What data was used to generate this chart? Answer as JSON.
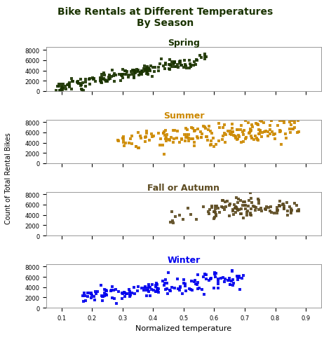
{
  "title": "Bike Rentals at Different Temperatures\nBy Season",
  "title_color": "#1a3300",
  "title_fontsize": 10,
  "xlabel": "Normalized temperature",
  "ylabel": "Count of Total Rental Bikes",
  "seasons": [
    "Spring",
    "Summer",
    "Fall or Autumn",
    "Winter"
  ],
  "season_colors": [
    "#1a3300",
    "#cc8800",
    "#5c4a20",
    "#0000ee"
  ],
  "season_title_colors": [
    "#1a3300",
    "#cc8800",
    "#5c4a20",
    "#0000ee"
  ],
  "xlim": [
    0.05,
    0.95
  ],
  "ylim": [
    0,
    8500
  ],
  "yticks": [
    0,
    2000,
    4000,
    6000,
    8000
  ],
  "xticks": [
    0.1,
    0.2,
    0.3,
    0.4,
    0.5,
    0.6,
    0.7,
    0.8,
    0.9
  ],
  "marker": "s",
  "marker_size": 12,
  "figsize": [
    4.72,
    4.89
  ],
  "dpi": 100
}
